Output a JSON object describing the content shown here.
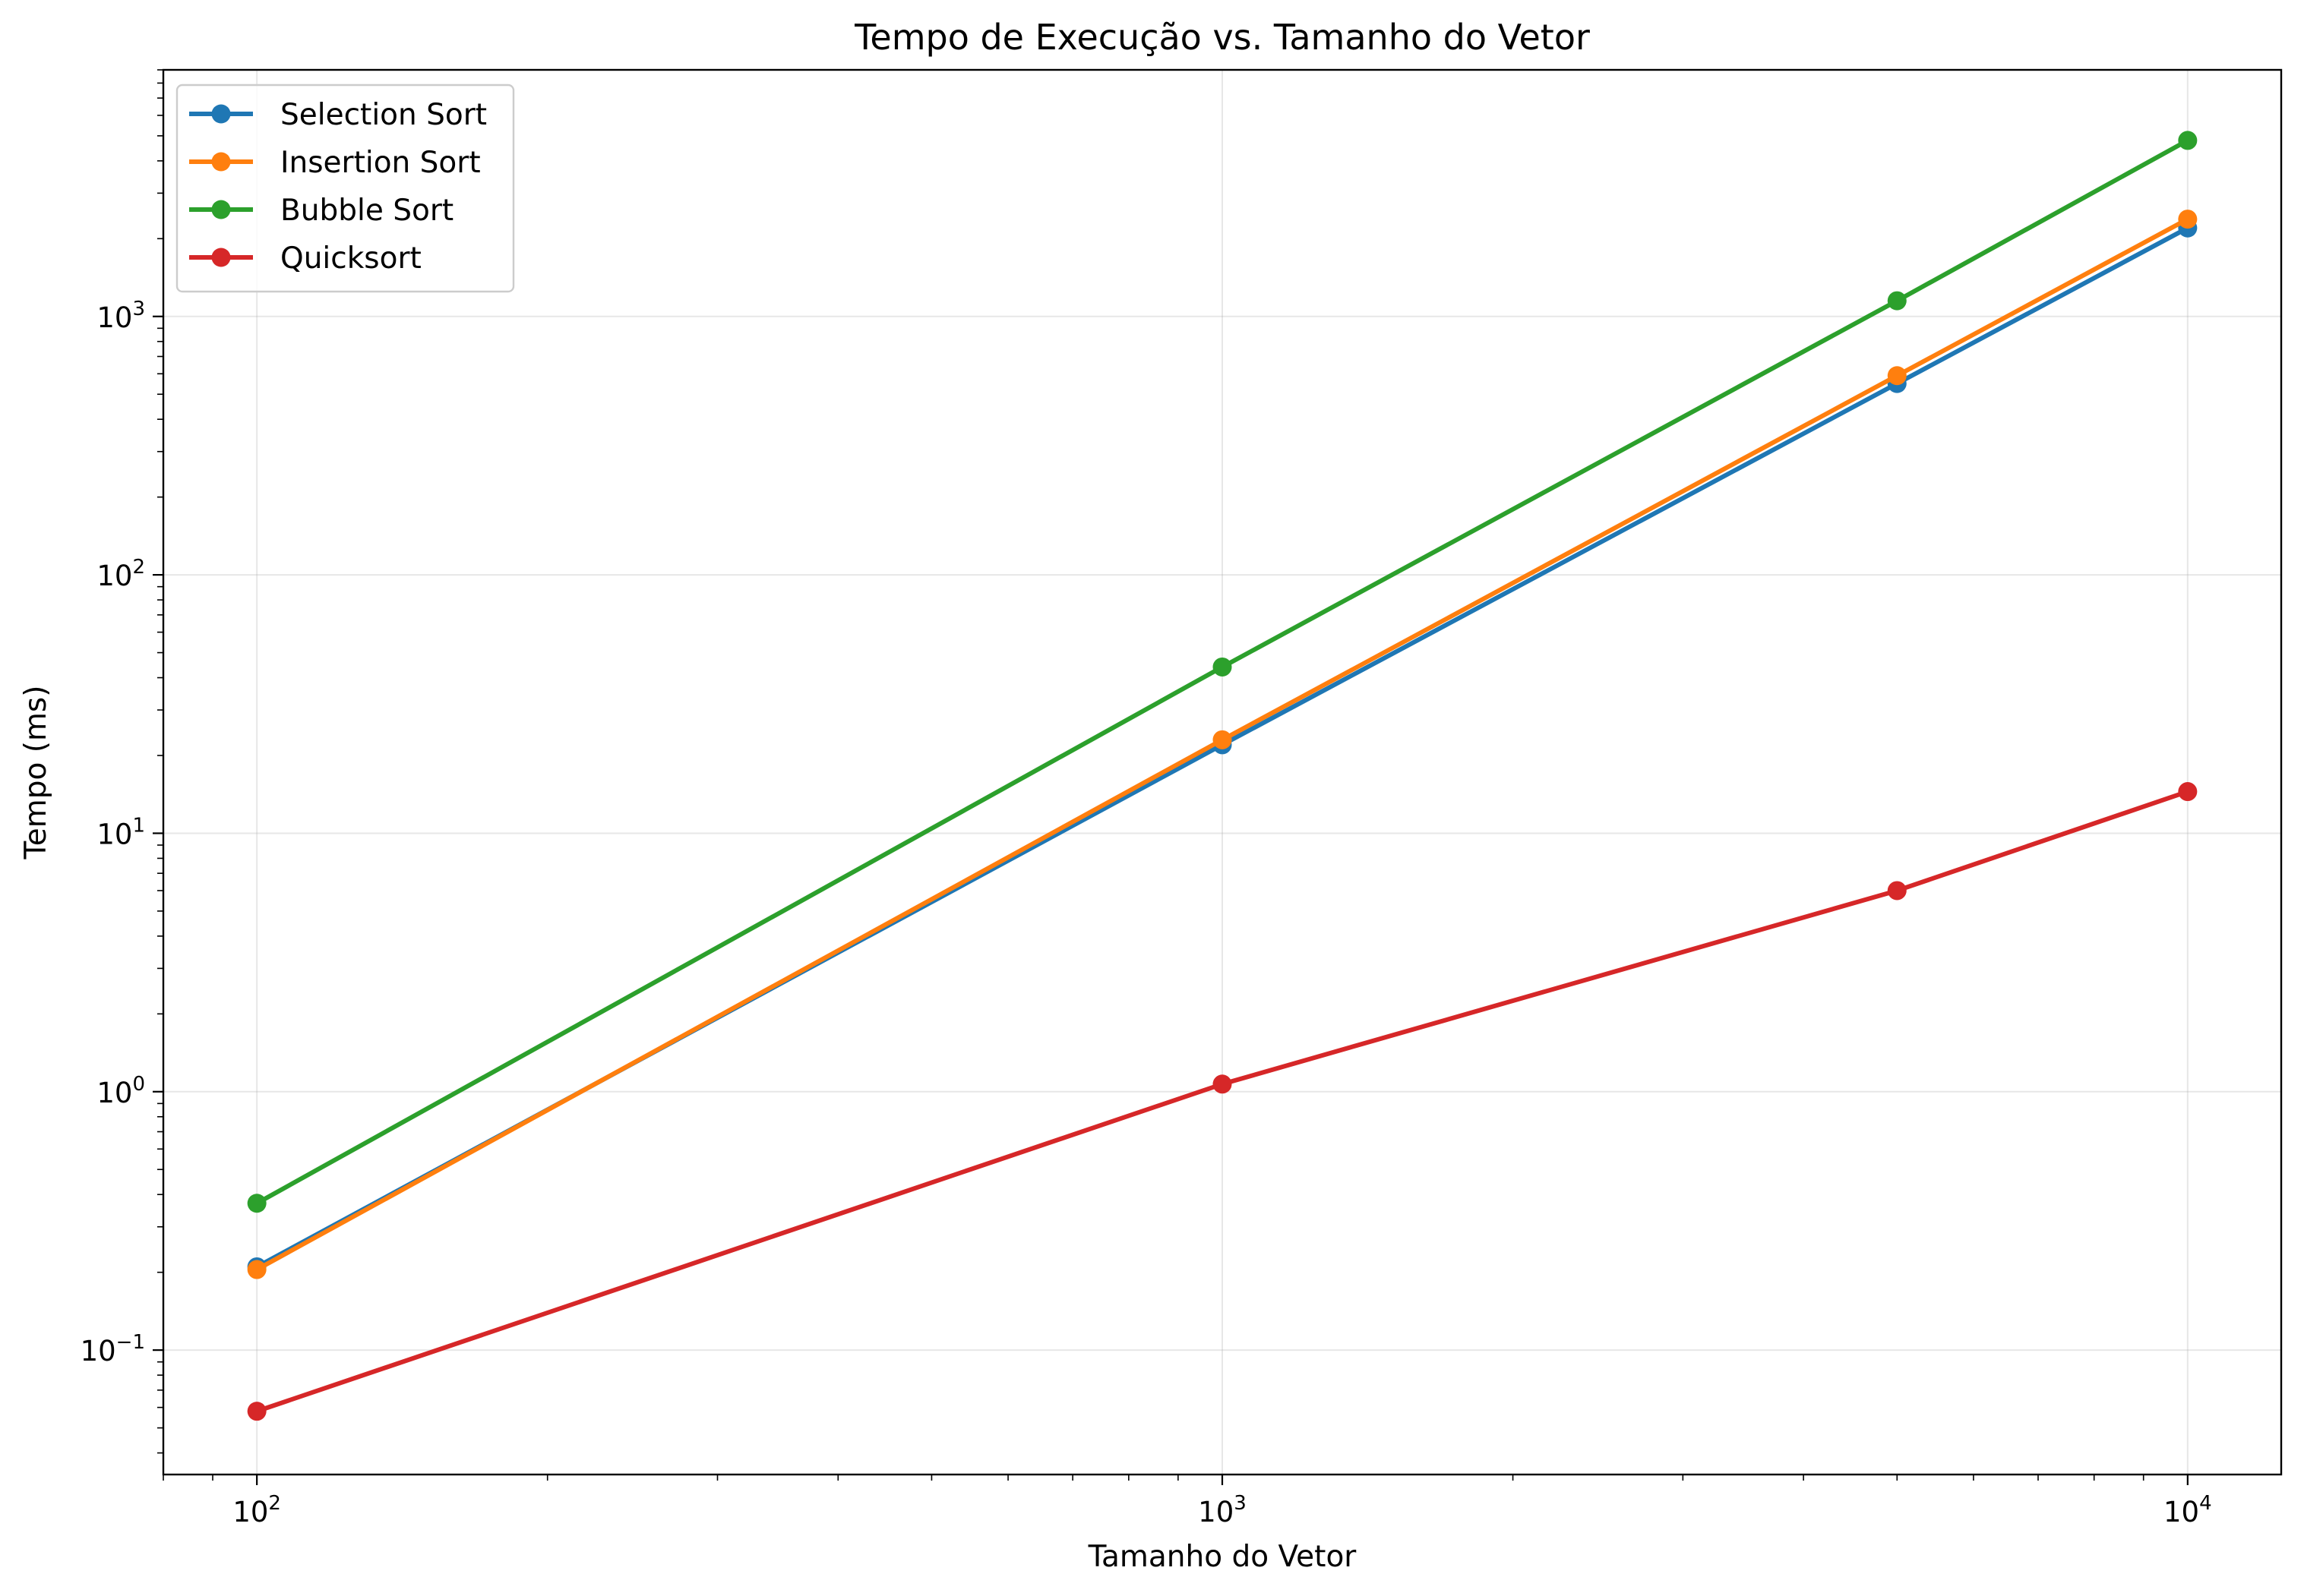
{
  "chart_data": {
    "type": "line",
    "title": "Tempo de Execução vs. Tamanho do Vetor",
    "xlabel": "Tamanho do Vetor",
    "ylabel": "Tempo (ms)",
    "xscale": "log",
    "yscale": "log",
    "xlim": [
      80,
      12500
    ],
    "ylim": [
      0.033,
      9000
    ],
    "grid": true,
    "legend_position": "top-left",
    "x": [
      100,
      1000,
      5000,
      10000
    ],
    "x_ticks": [
      {
        "value": 100,
        "base": "10",
        "exp": "2"
      },
      {
        "value": 1000,
        "base": "10",
        "exp": "3"
      },
      {
        "value": 10000,
        "base": "10",
        "exp": "4"
      }
    ],
    "y_ticks": [
      {
        "value": 0.1,
        "base": "10",
        "exp": "−1"
      },
      {
        "value": 1,
        "base": "10",
        "exp": "0"
      },
      {
        "value": 10,
        "base": "10",
        "exp": "1"
      },
      {
        "value": 100,
        "base": "10",
        "exp": "2"
      },
      {
        "value": 1000,
        "base": "10",
        "exp": "3"
      }
    ],
    "series": [
      {
        "name": "Selection Sort",
        "color": "#1f77b4",
        "values": [
          0.21,
          22,
          550,
          2200
        ]
      },
      {
        "name": "Insertion Sort",
        "color": "#ff7f0e",
        "values": [
          0.205,
          23,
          590,
          2380
        ]
      },
      {
        "name": "Bubble Sort",
        "color": "#2ca02c",
        "values": [
          0.37,
          44,
          1150,
          4800
        ]
      },
      {
        "name": "Quicksort",
        "color": "#d62728",
        "values": [
          0.058,
          1.07,
          6.0,
          14.5
        ]
      }
    ]
  }
}
